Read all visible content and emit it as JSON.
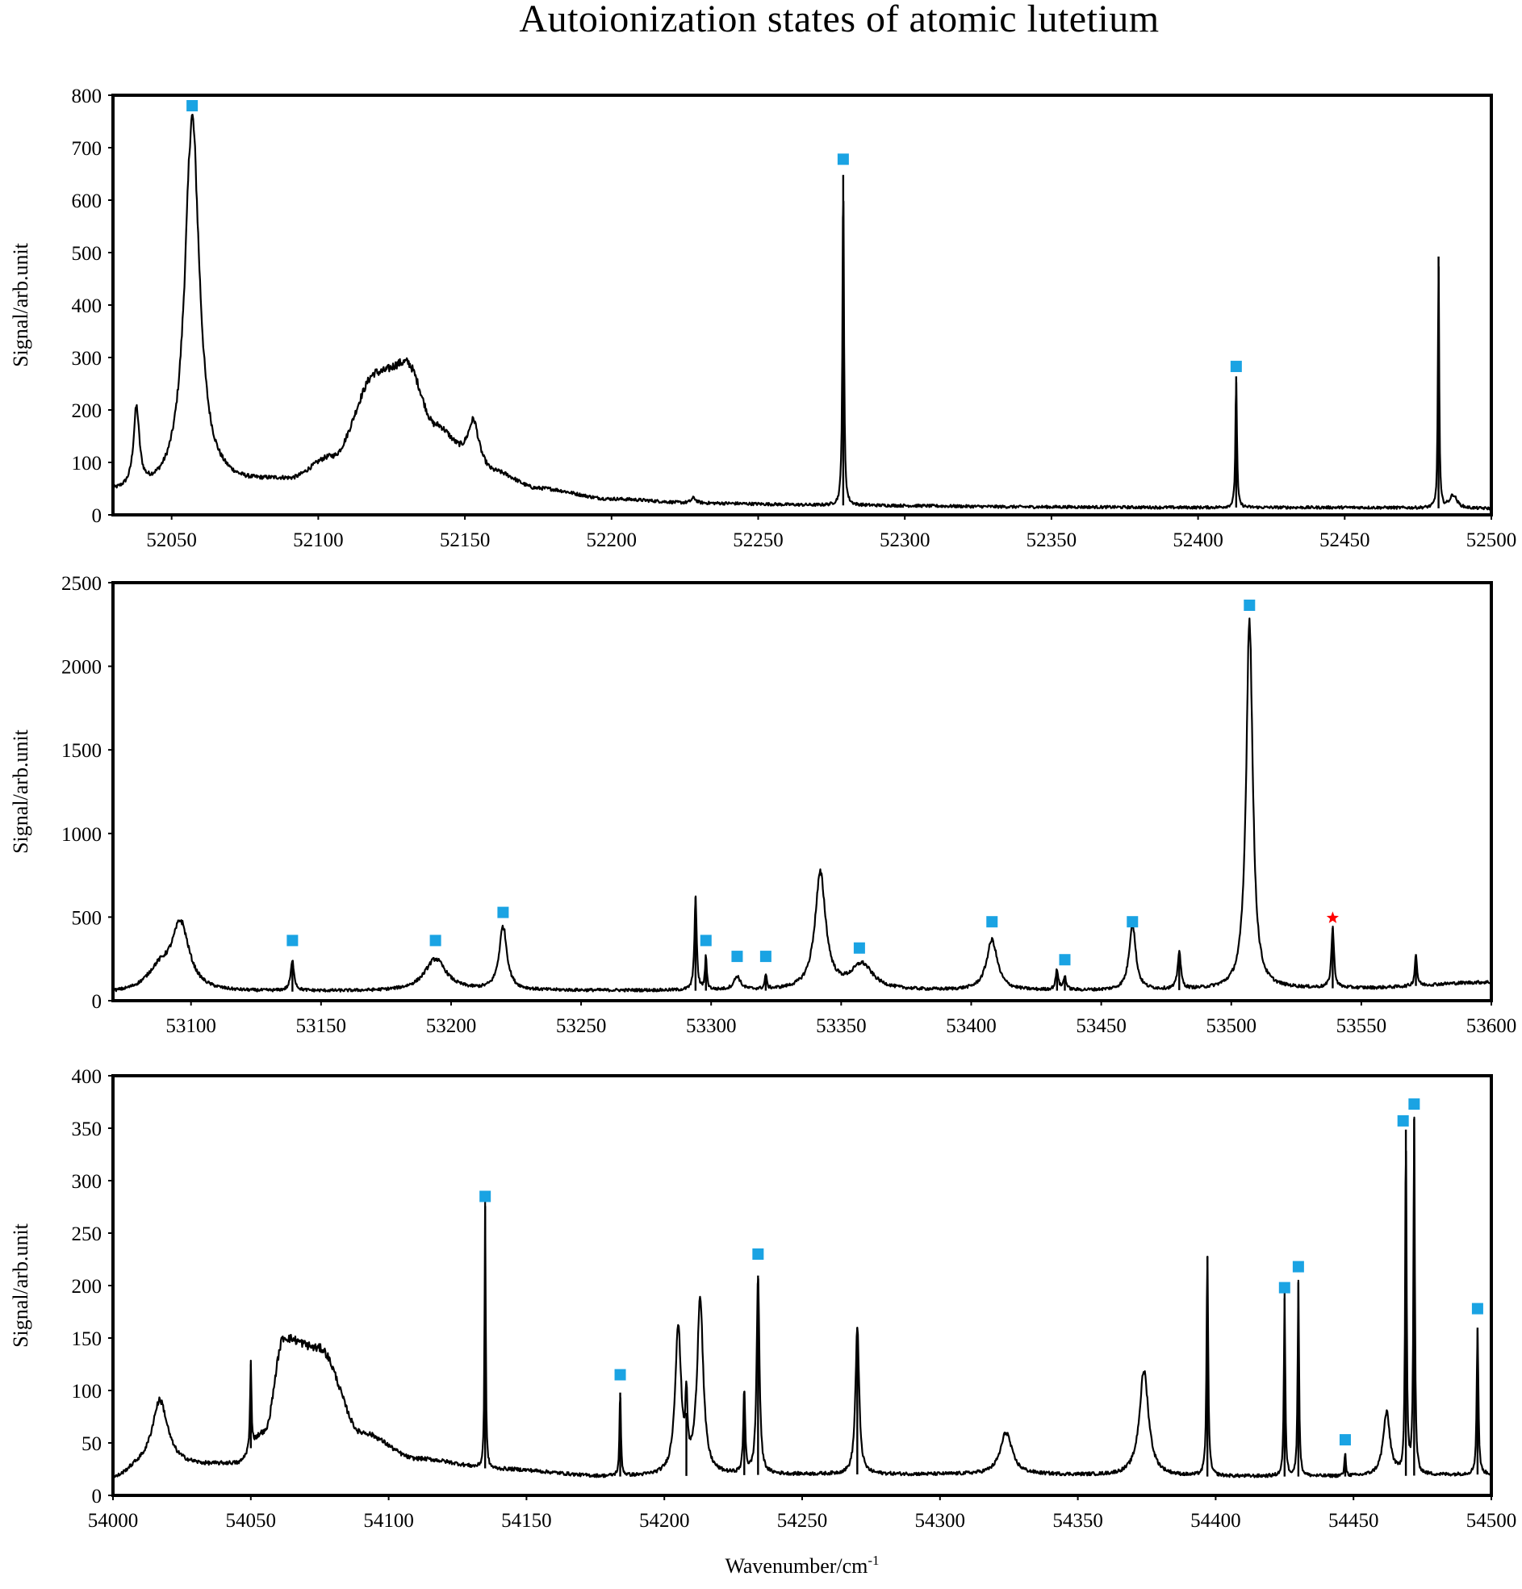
{
  "title": "Autoionization states of atomic lutetium",
  "colors": {
    "line": "#000000",
    "marker": "#1aa3e3",
    "star": "#ff0000"
  },
  "chart_data": [
    {
      "type": "line",
      "ylabel": "Signal/arb.unit",
      "xlim": [
        52030,
        52500
      ],
      "ylim": [
        0,
        800
      ],
      "xticks": [
        52050,
        52100,
        52150,
        52200,
        52250,
        52300,
        52350,
        52400,
        52450,
        52500
      ],
      "yticks": [
        0,
        100,
        200,
        300,
        400,
        500,
        600,
        700,
        800
      ],
      "baseline": [
        [
          52030,
          40
        ],
        [
          52045,
          40
        ],
        [
          52070,
          55
        ],
        [
          52090,
          65
        ],
        [
          52105,
          110
        ],
        [
          52120,
          270
        ],
        [
          52130,
          290
        ],
        [
          52140,
          170
        ],
        [
          52150,
          120
        ],
        [
          52160,
          80
        ],
        [
          52175,
          50
        ],
        [
          52200,
          30
        ],
        [
          52230,
          22
        ],
        [
          52280,
          18
        ],
        [
          52350,
          15
        ],
        [
          52400,
          14
        ],
        [
          52450,
          14
        ],
        [
          52500,
          12
        ]
      ],
      "peaks": [
        {
          "x": 52038,
          "y": 150,
          "width": 1.2
        },
        {
          "x": 52057,
          "y": 710,
          "width": 3.0
        },
        {
          "x": 52153,
          "y": 70,
          "width": 2.0
        },
        {
          "x": 52228,
          "y": 10,
          "width": 1.0
        },
        {
          "x": 52279,
          "y": 630,
          "width": 0.3
        },
        {
          "x": 52413,
          "y": 250,
          "width": 0.3
        },
        {
          "x": 52482,
          "y": 480,
          "width": 0.25
        },
        {
          "x": 52487,
          "y": 25,
          "width": 1.5
        }
      ],
      "markers": [
        {
          "x": 52057,
          "y": 780,
          "symbol": "square"
        },
        {
          "x": 52279,
          "y": 678,
          "symbol": "square"
        },
        {
          "x": 52413,
          "y": 283,
          "symbol": "square"
        }
      ]
    },
    {
      "type": "line",
      "ylabel": "Signal/arb.unit",
      "xlim": [
        53070,
        53600
      ],
      "ylim": [
        0,
        2500
      ],
      "xticks": [
        53100,
        53150,
        53200,
        53250,
        53300,
        53350,
        53400,
        53450,
        53500,
        53550,
        53600
      ],
      "yticks": [
        0,
        500,
        1000,
        1500,
        2000,
        2500
      ],
      "baseline": [
        [
          53070,
          40
        ],
        [
          53150,
          55
        ],
        [
          53250,
          60
        ],
        [
          53350,
          60
        ],
        [
          53450,
          60
        ],
        [
          53550,
          75
        ],
        [
          53600,
          110
        ]
      ],
      "peaks": [
        {
          "x": 53088,
          "y": 130,
          "width": 6
        },
        {
          "x": 53096,
          "y": 390,
          "width": 4
        },
        {
          "x": 53139,
          "y": 175,
          "width": 0.8
        },
        {
          "x": 53194,
          "y": 190,
          "width": 5
        },
        {
          "x": 53220,
          "y": 380,
          "width": 1.8
        },
        {
          "x": 53294,
          "y": 560,
          "width": 0.5
        },
        {
          "x": 53298,
          "y": 200,
          "width": 0.4
        },
        {
          "x": 53310,
          "y": 80,
          "width": 1.5
        },
        {
          "x": 53321,
          "y": 90,
          "width": 0.4
        },
        {
          "x": 53342,
          "y": 690,
          "width": 2.5
        },
        {
          "x": 53358,
          "y": 150,
          "width": 5
        },
        {
          "x": 53408,
          "y": 300,
          "width": 2.5
        },
        {
          "x": 53433,
          "y": 120,
          "width": 0.6
        },
        {
          "x": 53436,
          "y": 80,
          "width": 0.6
        },
        {
          "x": 53462,
          "y": 400,
          "width": 1.5
        },
        {
          "x": 53480,
          "y": 230,
          "width": 0.7
        },
        {
          "x": 53507,
          "y": 2230,
          "width": 1.5
        },
        {
          "x": 53539,
          "y": 360,
          "width": 0.6
        },
        {
          "x": 53571,
          "y": 190,
          "width": 0.5
        }
      ],
      "markers": [
        {
          "x": 53139,
          "y": 360,
          "symbol": "square"
        },
        {
          "x": 53194,
          "y": 360,
          "symbol": "square"
        },
        {
          "x": 53220,
          "y": 528,
          "symbol": "square"
        },
        {
          "x": 53298,
          "y": 360,
          "symbol": "square"
        },
        {
          "x": 53310,
          "y": 265,
          "symbol": "square"
        },
        {
          "x": 53321,
          "y": 265,
          "symbol": "square"
        },
        {
          "x": 53357,
          "y": 315,
          "symbol": "square"
        },
        {
          "x": 53408,
          "y": 472,
          "symbol": "square"
        },
        {
          "x": 53436,
          "y": 245,
          "symbol": "square"
        },
        {
          "x": 53462,
          "y": 472,
          "symbol": "square"
        },
        {
          "x": 53507,
          "y": 2365,
          "symbol": "square"
        },
        {
          "x": 53539,
          "y": 495,
          "symbol": "star"
        }
      ]
    },
    {
      "type": "line",
      "ylabel": "Signal/arb.unit",
      "xlabel": "Wavenumber/cm",
      "xlabel_superscript": "-1",
      "xlim": [
        54000,
        54500
      ],
      "ylim": [
        0,
        400
      ],
      "xticks": [
        54000,
        54050,
        54100,
        54150,
        54200,
        54250,
        54300,
        54350,
        54400,
        54450,
        54500
      ],
      "yticks": [
        0,
        50,
        100,
        150,
        200,
        250,
        300,
        350,
        400
      ],
      "baseline": [
        [
          54000,
          15
        ],
        [
          54010,
          25
        ],
        [
          54030,
          28
        ],
        [
          54045,
          30
        ],
        [
          54055,
          60
        ],
        [
          54062,
          150
        ],
        [
          54075,
          140
        ],
        [
          54090,
          60
        ],
        [
          54110,
          35
        ],
        [
          54140,
          25
        ],
        [
          54180,
          18
        ],
        [
          54260,
          20
        ],
        [
          54320,
          20
        ],
        [
          54400,
          18
        ],
        [
          54450,
          18
        ],
        [
          54500,
          20
        ]
      ],
      "peaks": [
        {
          "x": 54017,
          "y": 65,
          "width": 3.5
        },
        {
          "x": 54050,
          "y": 80,
          "width": 0.3
        },
        {
          "x": 54135,
          "y": 250,
          "width": 0.25
        },
        {
          "x": 54184,
          "y": 80,
          "width": 0.3
        },
        {
          "x": 54205,
          "y": 140,
          "width": 1.3
        },
        {
          "x": 54208,
          "y": 60,
          "width": 0.4
        },
        {
          "x": 54213,
          "y": 170,
          "width": 1.3
        },
        {
          "x": 54229,
          "y": 80,
          "width": 0.4
        },
        {
          "x": 54234,
          "y": 190,
          "width": 0.6
        },
        {
          "x": 54270,
          "y": 140,
          "width": 0.8
        },
        {
          "x": 54324,
          "y": 40,
          "width": 2.5
        },
        {
          "x": 54374,
          "y": 100,
          "width": 2.0
        },
        {
          "x": 54397,
          "y": 210,
          "width": 0.35
        },
        {
          "x": 54425,
          "y": 170,
          "width": 0.3
        },
        {
          "x": 54430,
          "y": 185,
          "width": 0.3
        },
        {
          "x": 54447,
          "y": 22,
          "width": 0.3
        },
        {
          "x": 54462,
          "y": 60,
          "width": 1.5
        },
        {
          "x": 54469,
          "y": 330,
          "width": 0.3
        },
        {
          "x": 54472,
          "y": 340,
          "width": 0.3
        },
        {
          "x": 54495,
          "y": 140,
          "width": 0.35
        }
      ],
      "markers": [
        {
          "x": 54135,
          "y": 285,
          "symbol": "square"
        },
        {
          "x": 54184,
          "y": 115,
          "symbol": "square"
        },
        {
          "x": 54234,
          "y": 230,
          "symbol": "square"
        },
        {
          "x": 54425,
          "y": 198,
          "symbol": "square"
        },
        {
          "x": 54430,
          "y": 218,
          "symbol": "square"
        },
        {
          "x": 54447,
          "y": 53,
          "symbol": "square"
        },
        {
          "x": 54468,
          "y": 357,
          "symbol": "square"
        },
        {
          "x": 54472,
          "y": 373,
          "symbol": "square"
        },
        {
          "x": 54495,
          "y": 178,
          "symbol": "square"
        }
      ]
    }
  ]
}
